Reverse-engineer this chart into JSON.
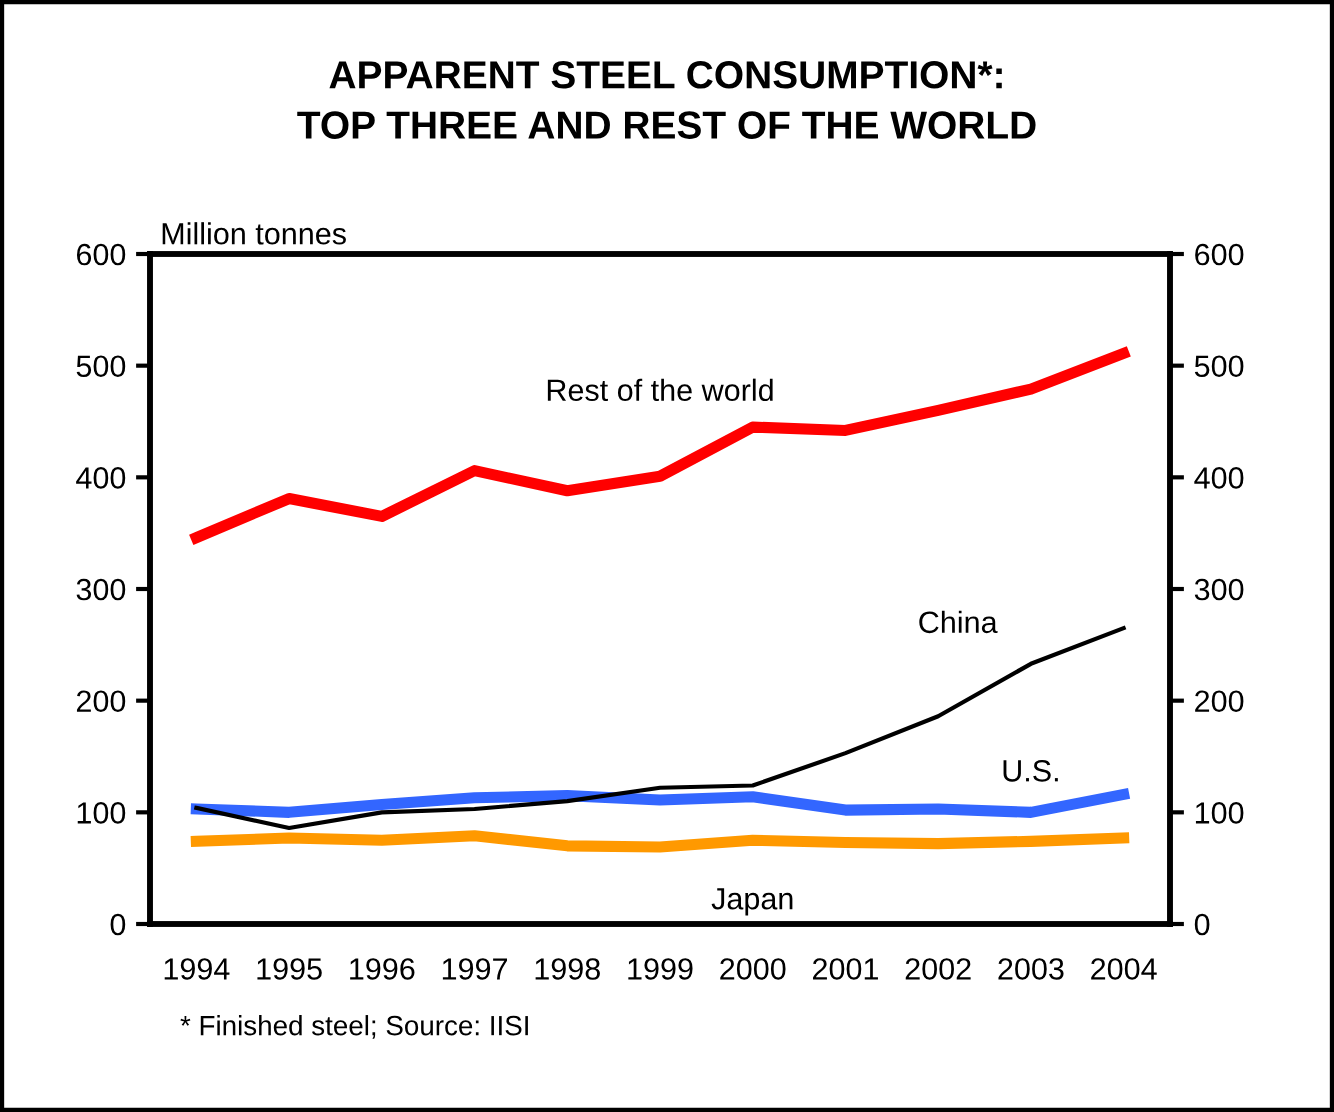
{
  "chart_data": {
    "type": "line",
    "title": "APPARENT STEEL CONSUMPTION*:\nTOP THREE AND REST OF THE WORLD",
    "ylabel": "Million tonnes",
    "categories": [
      "1994",
      "1995",
      "1996",
      "1997",
      "1998",
      "1999",
      "2000",
      "2001",
      "2002",
      "2003",
      "2004"
    ],
    "series": [
      {
        "name": "Rest of the world",
        "color": "#ff0000",
        "values": [
          346,
          381,
          365,
          406,
          388,
          401,
          445,
          442,
          460,
          479,
          511
        ]
      },
      {
        "name": "China",
        "color": "#000000",
        "values": [
          104,
          86,
          100,
          103,
          110,
          122,
          124,
          153,
          186,
          233,
          265
        ]
      },
      {
        "name": "U.S.",
        "color": "#3366ff",
        "values": [
          103,
          100,
          107,
          113,
          115,
          111,
          114,
          102,
          103,
          100,
          116
        ]
      },
      {
        "name": "Japan",
        "color": "#ff9900",
        "values": [
          74,
          77,
          75,
          79,
          70,
          69,
          75,
          73,
          72,
          74,
          77
        ]
      }
    ],
    "ylim": [
      0,
      600
    ],
    "yticks": [
      0,
      100,
      200,
      300,
      400,
      500,
      600
    ],
    "y2lim": [
      0,
      600
    ],
    "y2ticks": [
      0,
      100,
      200,
      300,
      400,
      500,
      600
    ],
    "grid": false,
    "legend": false,
    "marker": "none",
    "line_style": "solid",
    "annotations": [
      "* Finished steel; Source: IISI"
    ]
  }
}
